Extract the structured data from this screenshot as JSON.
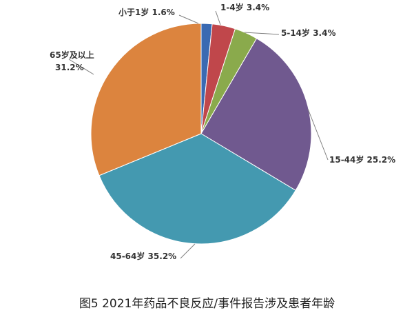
{
  "caption": "图5  2021年药品不良反应/事件报告涉及患者年龄",
  "chart_data": {
    "type": "pie",
    "title": "",
    "start_angle_deg": 0,
    "direction": "clockwise",
    "slices": [
      {
        "label": "小于1岁",
        "value": 1.6,
        "value_text": "1.6%",
        "color": "#3a6ab2"
      },
      {
        "label": "1-4岁",
        "value": 3.4,
        "value_text": "3.4%",
        "color": "#c0474b"
      },
      {
        "label": "5-14岁",
        "value": 3.4,
        "value_text": "3.4%",
        "color": "#8aaa4c"
      },
      {
        "label": "15-44岁",
        "value": 25.2,
        "value_text": "25.2%",
        "color": "#70598f"
      },
      {
        "label": "45-64岁",
        "value": 35.2,
        "value_text": "35.2%",
        "color": "#4499b0"
      },
      {
        "label": "65岁及以上",
        "value": 31.2,
        "value_text": "31.2%",
        "color": "#dc843e"
      }
    ],
    "legend": "none",
    "data_labels": "outside with leader lines"
  }
}
